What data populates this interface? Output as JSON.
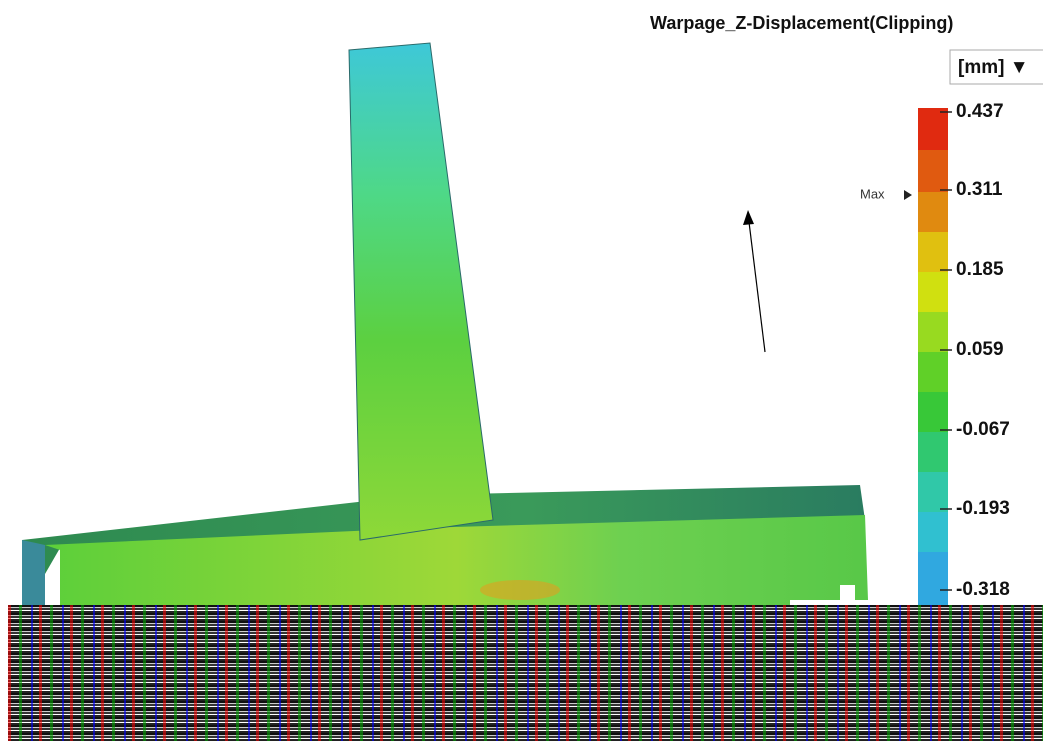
{
  "title": "Warpage_Z-Displacement(Clipping)",
  "unit": "[mm] ▼",
  "max_marker": "Max",
  "legend": {
    "labels": [
      "0.437",
      "0.311",
      "0.185",
      "0.059",
      "-0.067",
      "-0.193",
      "-0.318"
    ]
  }
}
